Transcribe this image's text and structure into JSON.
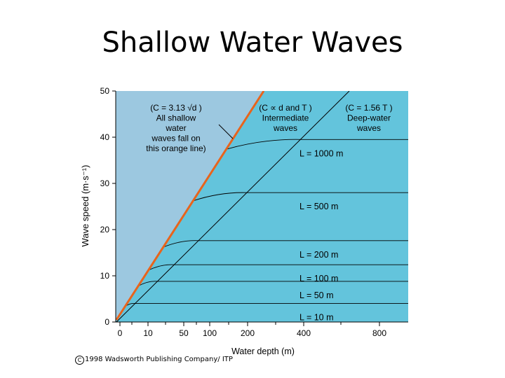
{
  "slide": {
    "title": "Shallow Water Waves",
    "copyright_symbol": "C",
    "copyright_text": "1998 Wadsworth Publishing Company/ ITP"
  },
  "colors": {
    "shallow_region": "#63c4dc",
    "deep_region": "#9cc8e0",
    "shallow_line": "#e8641c",
    "curve": "#000000"
  },
  "chart_data": {
    "type": "line",
    "xlabel": "Water depth (m)",
    "ylabel": "Wave speed (m·s⁻¹)",
    "ylim": [
      0,
      50
    ],
    "x_ticks": [
      "0",
      "10",
      "50",
      "100",
      "200",
      "400",
      "800"
    ],
    "y_ticks": [
      0,
      10,
      20,
      30,
      40,
      50
    ],
    "annotations": {
      "shallow": [
        "(C = 3.13 √d )",
        "All shallow",
        "water",
        "waves fall on",
        "this orange line)"
      ],
      "intermediate": [
        "(C ∝ d and T )",
        "Intermediate",
        "waves"
      ],
      "deep": [
        "(C = 1.56 T )",
        "Deep-water",
        "waves"
      ]
    },
    "wavelengths": [
      {
        "label": "L = 1000 m",
        "speed": 39.5
      },
      {
        "label": "L = 500 m",
        "speed": 28
      },
      {
        "label": "L = 200 m",
        "speed": 17.6
      },
      {
        "label": "L = 100 m",
        "speed": 12.4
      },
      {
        "label": "L = 50 m",
        "speed": 8.8
      },
      {
        "label": "L = 10 m",
        "speed": 4
      }
    ]
  }
}
